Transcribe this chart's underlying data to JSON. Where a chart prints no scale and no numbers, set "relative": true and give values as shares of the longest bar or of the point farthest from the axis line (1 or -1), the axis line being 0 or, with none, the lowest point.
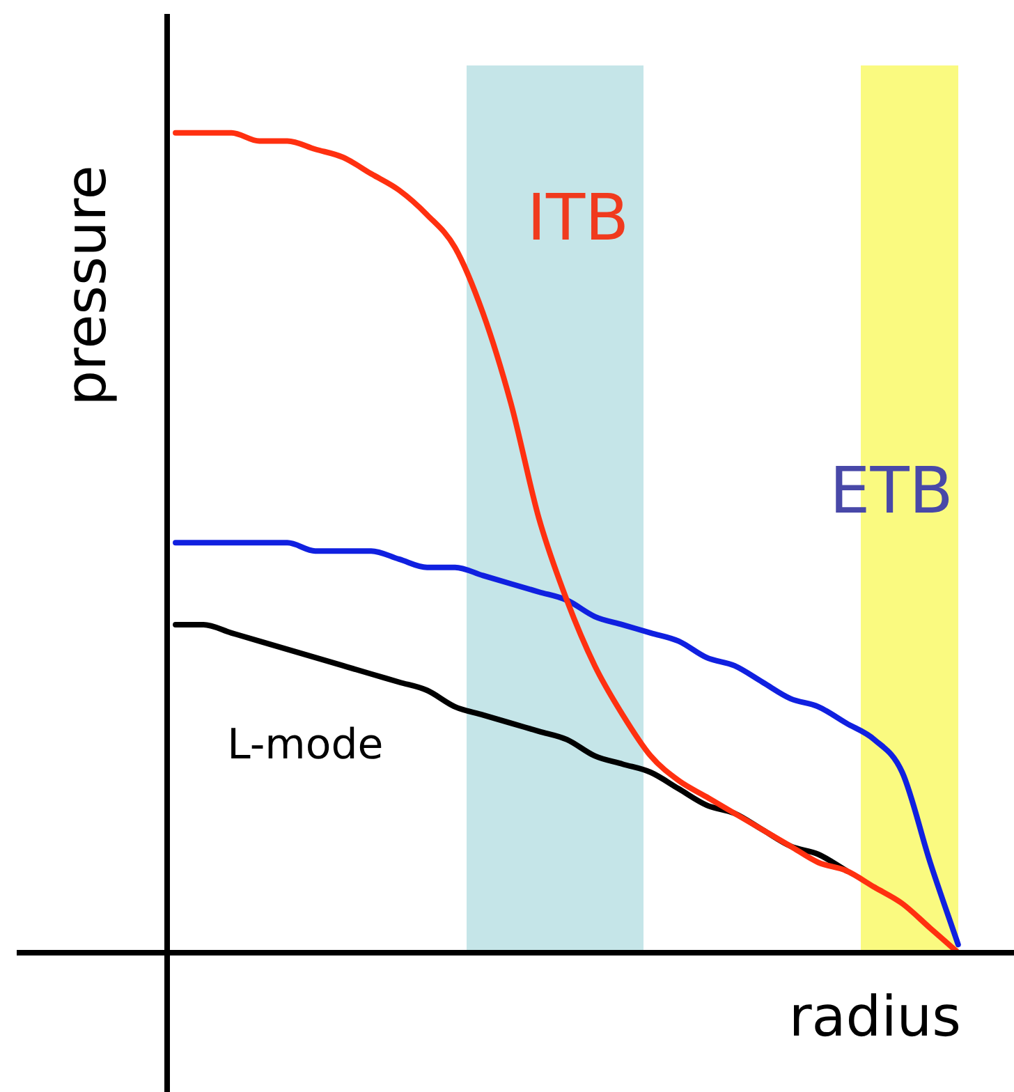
{
  "chart_data": {
    "type": "line",
    "relative": true,
    "xlabel": "radius",
    "ylabel": "pressure",
    "annotations": [
      "ITB",
      "ETB"
    ],
    "categories": [
      null,
      null,
      null,
      null,
      null,
      null,
      null,
      null,
      null,
      null,
      null,
      null,
      null,
      null,
      null,
      null,
      null,
      null,
      null,
      null,
      null,
      null,
      null,
      null,
      null,
      null,
      null,
      null,
      null
    ],
    "series": [
      {
        "color": "#ff3010",
        "values": [
          1,
          1,
          1,
          0.99,
          0.99,
          0.98,
          0.97,
          0.95,
          0.93,
          0.9,
          0.86,
          0.78,
          0.67,
          0.53,
          0.43,
          0.35,
          0.29,
          0.24,
          0.21,
          0.19,
          0.17,
          0.15,
          0.13,
          0.11,
          0.1,
          0.08,
          0.06,
          0.03,
          0
        ]
      },
      {
        "color": "#1020e0",
        "values": [
          0.5,
          0.5,
          0.5,
          0.5,
          0.5,
          0.49,
          0.49,
          0.49,
          0.48,
          0.47,
          0.47,
          0.46,
          0.45,
          0.44,
          0.43,
          0.41,
          0.4,
          0.39,
          0.38,
          0.36,
          0.35,
          0.33,
          0.31,
          0.3,
          0.28,
          0.26,
          0.22,
          0.11,
          0.01
        ]
      },
      {
        "name": "L-mode",
        "color": "#000000",
        "values": [
          0.4,
          0.4,
          0.39,
          0.38,
          0.37,
          0.36,
          0.35,
          0.34,
          0.33,
          0.32,
          0.3,
          0.29,
          0.28,
          0.27,
          0.26,
          0.24,
          0.23,
          0.22,
          0.2,
          0.18,
          0.17,
          0.15,
          0.13,
          0.12,
          0.1,
          null,
          null,
          null,
          null
        ]
      }
    ]
  }
}
